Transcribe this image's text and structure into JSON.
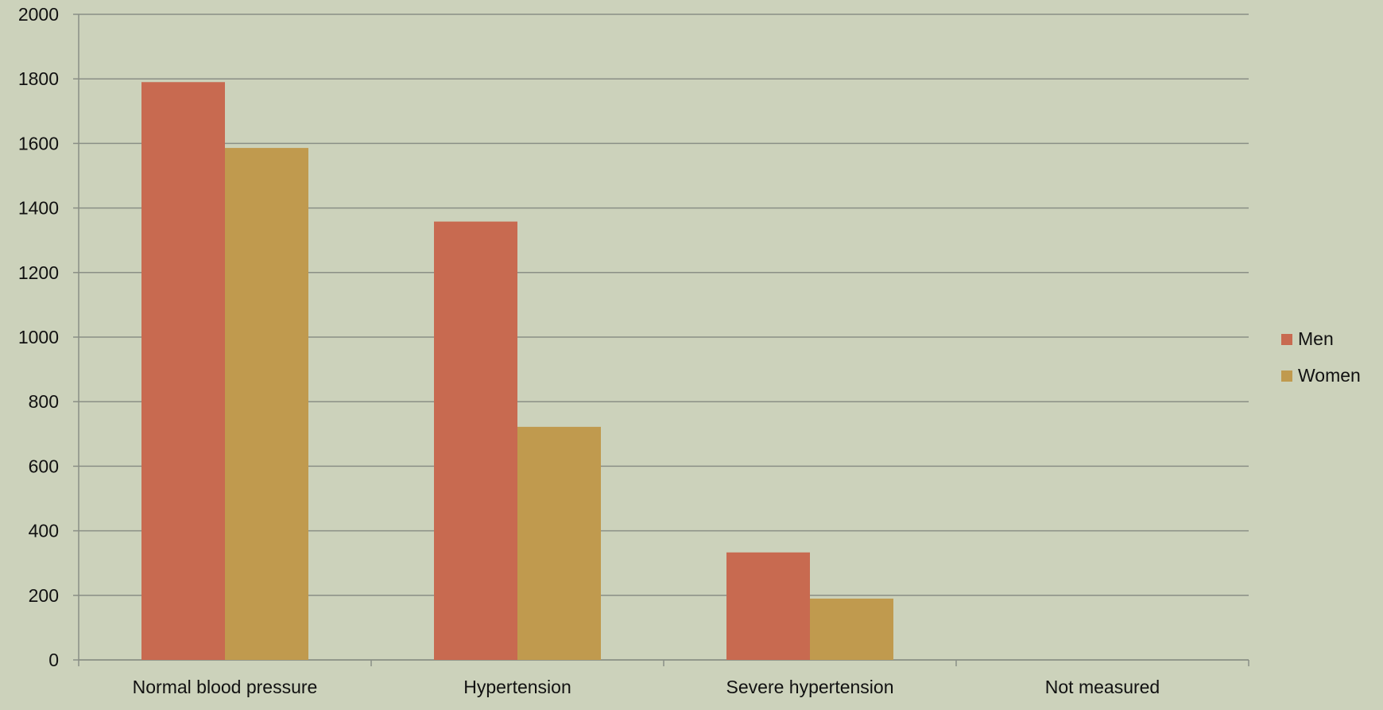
{
  "chart_data": {
    "type": "bar",
    "title": "",
    "xlabel": "",
    "ylabel": "",
    "categories": [
      "Normal blood pressure",
      "Hypertension",
      "Severe hypertension",
      "Not measured"
    ],
    "series": [
      {
        "name": "Men",
        "values": [
          1790,
          1358,
          333,
          0
        ],
        "color": "#c86a50"
      },
      {
        "name": "Women",
        "values": [
          1586,
          722,
          190,
          0
        ],
        "color": "#c09a4e"
      }
    ],
    "ylim": [
      0,
      2000
    ],
    "yticks": [
      0,
      200,
      400,
      600,
      800,
      1000,
      1200,
      1400,
      1600,
      1800,
      2000
    ],
    "grid": true,
    "legend_position": "right",
    "colors": {
      "background": "#ccd2bb",
      "grid": "#8a8f86",
      "axis": "#8a8f86",
      "text": "#111111"
    }
  }
}
